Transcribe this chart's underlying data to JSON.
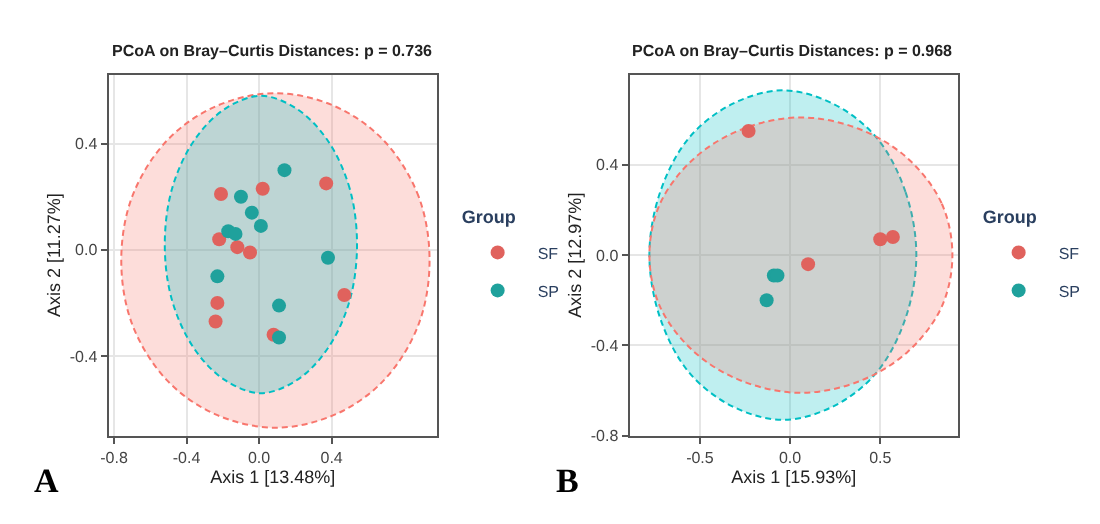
{
  "chart_data": [
    {
      "type": "scatter",
      "title": "PCoA on Bray–Curtis Distances: p = 0.736",
      "xlabel": "Axis 1 [13.48%]",
      "ylabel": "Axis 2 [11.27%]",
      "legend_title": "Group",
      "legend": "right",
      "grid": true,
      "marker": "circle",
      "annotations": [
        "A"
      ],
      "xlim": [
        -0.83,
        0.98
      ],
      "xticks": [
        -0.8,
        -0.4,
        {
          "value": 0,
          "label": "0.0"
        },
        0.4
      ],
      "ylim": [
        -0.7,
        0.66
      ],
      "yticks": [
        -0.4,
        {
          "value": 0,
          "label": "0.0"
        },
        0.4
      ],
      "series": [
        {
          "type": "area",
          "marker": "none",
          "line_style": "dashed",
          "color": "#f8766d",
          "x": [
            0.94,
            0.88,
            0.69,
            0.42,
            0.09,
            -0.24,
            -0.51,
            -0.7,
            -0.76,
            -0.7,
            -0.51,
            -0.24,
            0.09,
            0.42,
            0.69,
            0.88,
            0.94
          ],
          "values": [
            -0.04,
            0.2,
            0.41,
            0.54,
            0.59,
            0.54,
            0.41,
            0.2,
            -0.04,
            -0.28,
            -0.49,
            -0.62,
            -0.67,
            -0.62,
            -0.49,
            -0.28,
            -0.04
          ]
        },
        {
          "type": "area",
          "marker": "none",
          "line_style": "dashed",
          "color": "#00bfc4",
          "x": [
            0.54,
            0.5,
            0.38,
            0.21,
            0.01,
            -0.19,
            -0.36,
            -0.48,
            -0.52,
            -0.48,
            -0.36,
            -0.19,
            0.01,
            0.21,
            0.38,
            0.5,
            0.54
          ],
          "values": [
            0.02,
            0.23,
            0.41,
            0.53,
            0.58,
            0.53,
            0.41,
            0.23,
            0.02,
            -0.19,
            -0.37,
            -0.49,
            -0.54,
            -0.49,
            -0.37,
            -0.19,
            0.02
          ]
        },
        {
          "name": "SF",
          "color": "#e0625d",
          "x": [
            -0.21,
            0.02,
            0.37,
            -0.22,
            -0.12,
            -0.05,
            0.47,
            -0.23,
            -0.24,
            0.08
          ],
          "values": [
            0.21,
            0.23,
            0.25,
            0.04,
            0.01,
            -0.01,
            -0.17,
            -0.2,
            -0.27,
            -0.32
          ]
        },
        {
          "name": "SP",
          "color": "#1fa19c",
          "x": [
            0.14,
            -0.1,
            -0.04,
            0.01,
            -0.17,
            -0.13,
            0.38,
            -0.23,
            0.11,
            0.11
          ],
          "values": [
            0.3,
            0.2,
            0.14,
            0.09,
            0.07,
            0.06,
            -0.03,
            -0.1,
            -0.21,
            -0.33
          ]
        }
      ]
    },
    {
      "type": "scatter",
      "title": "PCoA on Bray–Curtis Distances: p = 0.968",
      "xlabel": "Axis 1 [15.93%]",
      "ylabel": "Axis 2 [12.97%]",
      "legend_title": "Group",
      "legend": "right",
      "grid": true,
      "marker": "circle",
      "annotations": [
        "B"
      ],
      "xlim": [
        -0.89,
        0.93
      ],
      "xticks": [
        -0.5,
        {
          "value": 0,
          "label": "0.0"
        },
        0.5
      ],
      "ylim": [
        -0.8,
        0.8
      ],
      "yticks": [
        -0.8,
        -0.4,
        {
          "value": 0,
          "label": "0.0"
        },
        0.4
      ],
      "series": [
        {
          "type": "area",
          "marker": "none",
          "line_style": "dashed",
          "color": "#00bfc4",
          "x": [
            0.7,
            0.64,
            0.48,
            0.24,
            -0.04,
            -0.32,
            -0.56,
            -0.72,
            -0.78,
            -0.72,
            -0.56,
            -0.32,
            -0.04,
            0.24,
            0.48,
            0.64,
            0.7
          ],
          "values": [
            0,
            0.28,
            0.52,
            0.67,
            0.73,
            0.67,
            0.52,
            0.28,
            0,
            -0.28,
            -0.52,
            -0.67,
            -0.73,
            -0.67,
            -0.52,
            -0.28,
            0
          ]
        },
        {
          "type": "area",
          "marker": "none",
          "line_style": "dashed",
          "color": "#f8766d",
          "x": [
            0.9,
            0.84,
            0.65,
            0.38,
            0.06,
            -0.26,
            -0.53,
            -0.72,
            -0.78,
            -0.72,
            -0.53,
            -0.26,
            0.06,
            0.38,
            0.65,
            0.84,
            0.9
          ],
          "values": [
            0,
            0.23,
            0.43,
            0.56,
            0.61,
            0.56,
            0.43,
            0.23,
            0,
            -0.23,
            -0.43,
            -0.56,
            -0.61,
            -0.56,
            -0.43,
            -0.23,
            0
          ]
        },
        {
          "name": "SF",
          "color": "#e0625d",
          "x": [
            -0.23,
            0.5,
            0.57,
            0.1
          ],
          "values": [
            0.55,
            0.07,
            0.08,
            -0.04
          ]
        },
        {
          "name": "SP",
          "color": "#1fa19c",
          "x": [
            -0.09,
            -0.07,
            -0.13
          ],
          "values": [
            -0.09,
            -0.09,
            -0.2
          ]
        }
      ]
    }
  ]
}
